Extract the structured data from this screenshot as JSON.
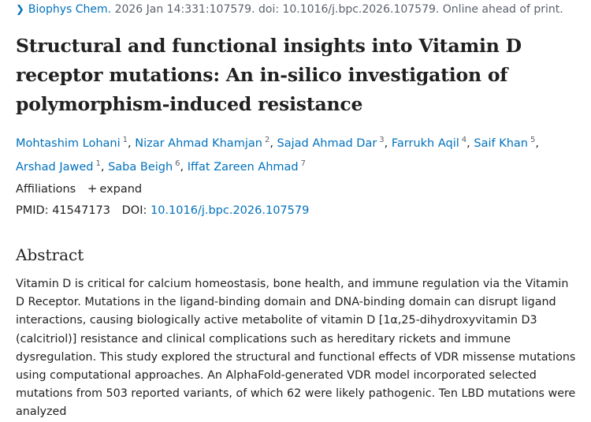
{
  "citation": {
    "journal": "Biophys Chem.",
    "details": "2026 Jan 14:331:107579. doi: 10.1016/j.bpc.2026.107579. Online ahead of print."
  },
  "title": "Structural and functional insights into Vitamin D receptor mutations: An in-silico investigation of polymorphism-induced resistance",
  "authors": [
    {
      "name": "Mohtashim Lohani",
      "affil": "1"
    },
    {
      "name": "Nizar Ahmad Khamjan",
      "affil": "2"
    },
    {
      "name": "Sajad Ahmad Dar",
      "affil": "3"
    },
    {
      "name": "Farrukh Aqil",
      "affil": "4"
    },
    {
      "name": "Saif Khan",
      "affil": "5"
    },
    {
      "name": "Arshad Jawed",
      "affil": "1"
    },
    {
      "name": "Saba Beigh",
      "affil": "6"
    },
    {
      "name": "Iffat Zareen Ahmad",
      "affil": "7"
    }
  ],
  "affiliations": {
    "label": "Affiliations",
    "expand": "expand",
    "plus": "+"
  },
  "ids": {
    "pmid_label": "PMID:",
    "pmid": "41547173",
    "doi_label": "DOI:",
    "doi": "10.1016/j.bpc.2026.107579"
  },
  "abstract": {
    "heading": "Abstract",
    "text": "Vitamin D is critical for calcium homeostasis, bone health, and immune regulation via the Vitamin D Receptor. Mutations in the ligand-binding domain and DNA-binding domain can disrupt ligand interactions, causing biologically active metabolite of vitamin D [1α,25-dihydroxyvitamin D3 (calcitriol)] resistance and clinical complications such as hereditary rickets and immune dysregulation. This study explored the structural and functional effects of VDR missense mutations using computational approaches. An AlphaFold-generated VDR model incorporated selected mutations from 503 reported variants, of which 62 were likely pathogenic. Ten LBD mutations were analyzed"
  }
}
